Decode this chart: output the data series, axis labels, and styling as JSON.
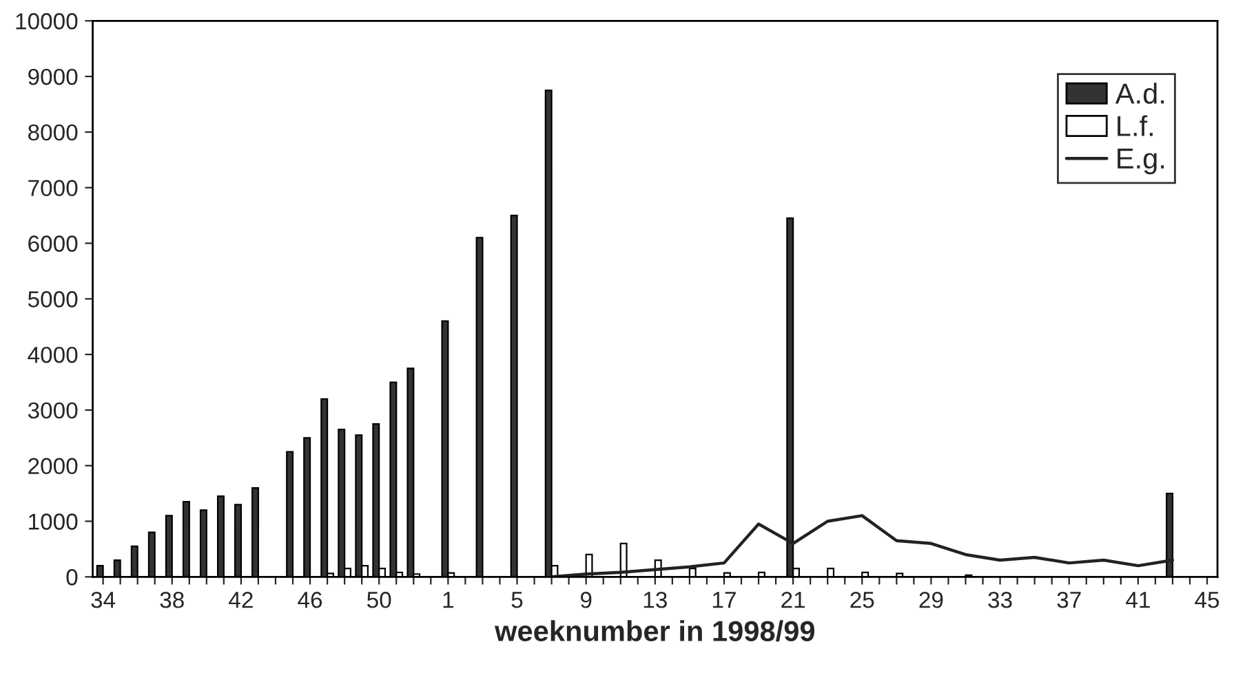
{
  "chart_data": {
    "type": "bar",
    "xlabel": "weeknumber in 1998/99",
    "categories": [
      "34",
      null,
      null,
      null,
      "38",
      null,
      null,
      null,
      "42",
      null,
      null,
      null,
      "46",
      null,
      null,
      null,
      "50",
      null,
      null,
      null,
      "1",
      null,
      null,
      null,
      "5",
      null,
      null,
      null,
      "9",
      null,
      null,
      null,
      "13",
      null,
      null,
      null,
      "17",
      null,
      null,
      null,
      "21",
      null,
      null,
      null,
      "25",
      null,
      null,
      null,
      "29",
      null,
      null,
      null,
      "33",
      null,
      null,
      null,
      "37",
      null,
      null,
      null,
      "41",
      null,
      null,
      null,
      "45"
    ],
    "series": [
      {
        "name": "A.d.",
        "color": "#333333",
        "values": [
          200,
          300,
          550,
          800,
          1100,
          1350,
          1200,
          1450,
          1300,
          1600,
          null,
          2250,
          2500,
          3200,
          2650,
          2550,
          2750,
          3500,
          3750,
          null,
          4600,
          null,
          6100,
          null,
          6500,
          null,
          8750,
          null,
          null,
          null,
          null,
          null,
          null,
          null,
          null,
          null,
          null,
          null,
          null,
          null,
          6450,
          null,
          null,
          null,
          null,
          null,
          null,
          null,
          null,
          null,
          null,
          null,
          null,
          null,
          null,
          null,
          null,
          null,
          null,
          null,
          null,
          null,
          1500,
          null,
          null
        ]
      },
      {
        "name": "L.f.",
        "color": "#ffffff",
        "values": [
          null,
          null,
          null,
          null,
          null,
          null,
          null,
          null,
          null,
          null,
          null,
          null,
          null,
          60,
          150,
          200,
          150,
          80,
          50,
          null,
          70,
          null,
          null,
          null,
          null,
          null,
          200,
          null,
          400,
          null,
          600,
          null,
          300,
          null,
          150,
          null,
          70,
          null,
          80,
          null,
          150,
          null,
          150,
          null,
          80,
          null,
          60,
          null,
          null,
          null,
          30,
          null,
          null,
          null,
          null,
          null,
          null,
          null,
          null,
          null,
          null,
          null,
          null,
          null,
          null
        ]
      },
      {
        "name": "E.g.",
        "type": "line",
        "color": "#222222",
        "values": [
          null,
          null,
          null,
          null,
          null,
          null,
          null,
          null,
          null,
          null,
          null,
          null,
          null,
          null,
          null,
          null,
          null,
          null,
          null,
          null,
          null,
          null,
          null,
          null,
          null,
          null,
          0,
          null,
          50,
          null,
          80,
          null,
          130,
          null,
          180,
          null,
          250,
          null,
          950,
          null,
          600,
          null,
          1000,
          null,
          1100,
          null,
          650,
          null,
          600,
          null,
          400,
          null,
          300,
          null,
          350,
          null,
          250,
          null,
          300,
          null,
          200,
          null,
          300,
          null,
          null
        ]
      }
    ],
    "ylim": [
      0,
      10000
    ],
    "yticks": [
      0,
      1000,
      2000,
      3000,
      4000,
      5000,
      6000,
      7000,
      8000,
      9000,
      10000
    ],
    "legend": "top right",
    "marker": "none",
    "line_style": "solid"
  }
}
